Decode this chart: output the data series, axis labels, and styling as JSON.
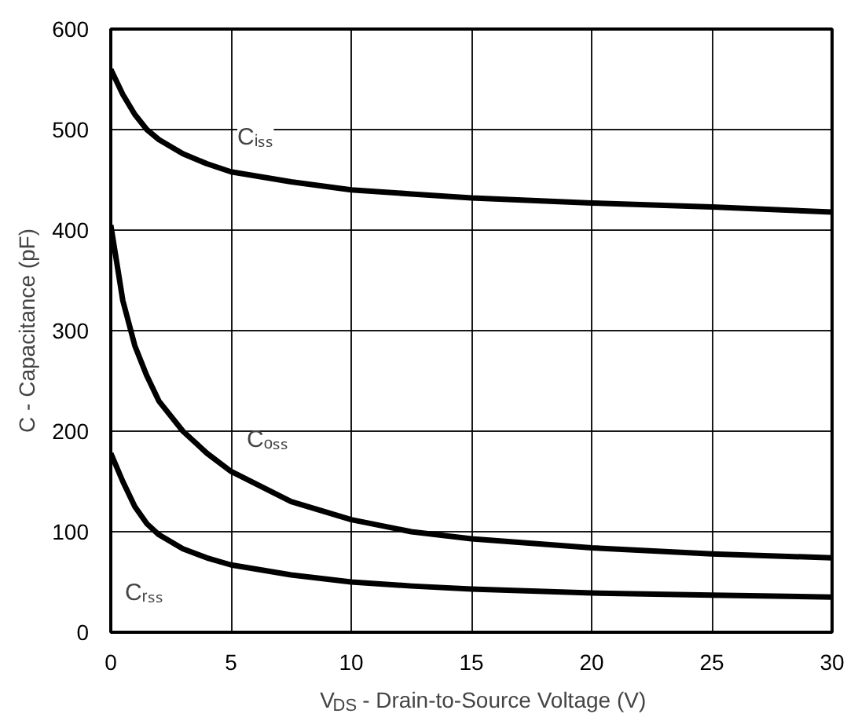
{
  "chart_data": {
    "type": "line",
    "xlabel": "V$_{DS}$ - Drain-to-Source Voltage (V)",
    "ylabel": "C - Capacitance (pF)",
    "x": [
      0,
      0.5,
      1,
      1.5,
      2,
      3,
      4,
      5,
      7.5,
      10,
      12.5,
      15,
      20,
      25,
      30
    ],
    "series": [
      {
        "name": "Cᵢₛₛ",
        "color": "#000000",
        "values": [
          560,
          535,
          515,
          500,
          490,
          476,
          466,
          458,
          448,
          440,
          436,
          432,
          427,
          423,
          418
        ]
      },
      {
        "name": "Cₒₛₛ",
        "color": "#000000",
        "values": [
          405,
          330,
          285,
          255,
          230,
          200,
          178,
          160,
          130,
          112,
          100,
          93,
          84,
          78,
          74
        ]
      },
      {
        "name": "Cᵣₛₛ",
        "color": "#000000",
        "values": [
          178,
          150,
          125,
          108,
          97,
          83,
          74,
          67,
          57,
          50,
          46,
          43,
          39,
          37,
          35
        ]
      }
    ],
    "xlim": [
      0,
      30
    ],
    "ylim": [
      0,
      600
    ],
    "xticks": [
      0,
      5,
      10,
      15,
      20,
      25,
      30
    ],
    "yticks": [
      0,
      100,
      200,
      300,
      400,
      500,
      600
    ],
    "grid": true,
    "marker": "none",
    "line_style": "solid"
  }
}
